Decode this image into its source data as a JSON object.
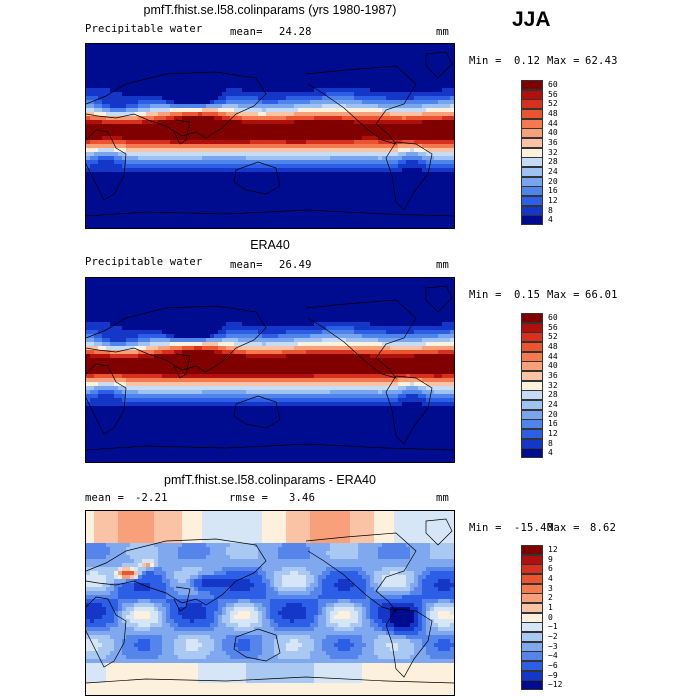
{
  "season": "JJA",
  "chart_data": [
    {
      "type": "heatmap",
      "title": "pmfT.fhist.se.l58.colinparams (yrs 1980-1987)",
      "variable": "Precipitable water",
      "mean_label": "mean=",
      "mean": "24.28",
      "units": "mm",
      "min_label": "Min =",
      "min": "0.12",
      "max_label": "Max =",
      "max": "62.43",
      "levels": [
        "60",
        "56",
        "52",
        "48",
        "44",
        "40",
        "36",
        "32",
        "28",
        "24",
        "20",
        "16",
        "12",
        "8",
        "4"
      ],
      "colors": [
        "#800000",
        "#b0100c",
        "#d7301f",
        "#ea5530",
        "#f4794f",
        "#f7a07a",
        "#fac3a5",
        "#fdf0dc",
        "#c6dbf5",
        "#9ec3f3",
        "#78a5ee",
        "#4f84ea",
        "#2c5ee6",
        "#1437c8",
        "#000c8f"
      ],
      "itcz_strength": 0.85
    },
    {
      "type": "heatmap",
      "title": "ERA40",
      "variable": "Precipitable water",
      "mean_label": "mean=",
      "mean": "26.49",
      "units": "mm",
      "min_label": "Min =",
      "min": "0.15",
      "max_label": "Max =",
      "max": "66.01",
      "levels": [
        "60",
        "56",
        "52",
        "48",
        "44",
        "40",
        "36",
        "32",
        "28",
        "24",
        "20",
        "16",
        "12",
        "8",
        "4"
      ],
      "colors": [
        "#800000",
        "#b0100c",
        "#d7301f",
        "#ea5530",
        "#f4794f",
        "#f7a07a",
        "#fac3a5",
        "#fdf0dc",
        "#c6dbf5",
        "#9ec3f3",
        "#78a5ee",
        "#4f84ea",
        "#2c5ee6",
        "#1437c8",
        "#000c8f"
      ],
      "itcz_strength": 1.0
    },
    {
      "type": "heatmap",
      "title": "pmfT.fhist.se.l58.colinparams - ERA40",
      "mean_label": "mean =",
      "mean": "-2.21",
      "rmse_label": "rmse =",
      "rmse": "3.46",
      "units": "mm",
      "min_label": "Min =",
      "min": "-15.40",
      "max_label": "Max =",
      "max": "8.62",
      "levels": [
        "12",
        "9",
        "6",
        "4",
        "3",
        "2",
        "1",
        "0",
        "−1",
        "−2",
        "−3",
        "−4",
        "−6",
        "−9",
        "−12"
      ],
      "colors": [
        "#800000",
        "#b0100c",
        "#d7301f",
        "#ea5530",
        "#f4794f",
        "#f7a07a",
        "#fac3a5",
        "#fdf0dc",
        "#d6e6f7",
        "#a9c8f2",
        "#7fa8ee",
        "#5585ea",
        "#2c5ee6",
        "#1437c8",
        "#000c8f"
      ]
    }
  ]
}
